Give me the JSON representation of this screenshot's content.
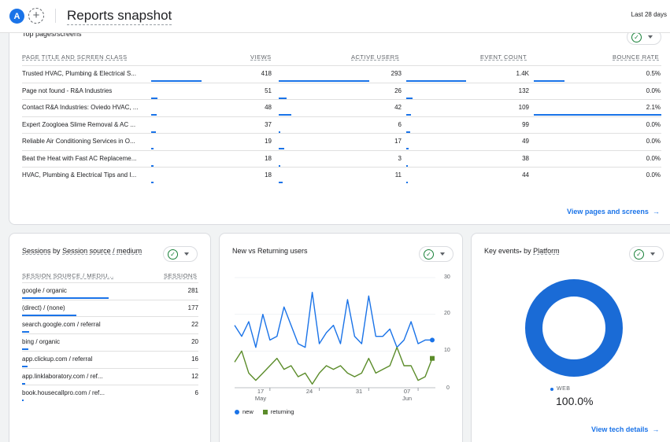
{
  "header": {
    "avatar_letter": "A",
    "add_label": "+",
    "title": "Reports snapshot",
    "date_range": "Last 28 days"
  },
  "top_pages": {
    "title": "Top pages/screens",
    "columns": [
      "PAGE TITLE AND SCREEN CLASS",
      "VIEWS",
      "ACTIVE USERS",
      "EVENT COUNT",
      "BOUNCE RATE"
    ],
    "rows": [
      {
        "page": "Trusted HVAC, Plumbing & Electrical S...",
        "views": "418",
        "users": "293",
        "events": "1.4K",
        "bounce": "0.5%",
        "f": [
          1.0,
          1.0,
          1.0,
          0.24
        ]
      },
      {
        "page": "Page not found - R&A Industries",
        "views": "51",
        "users": "26",
        "events": "132",
        "bounce": "0.0%",
        "f": [
          0.12,
          0.09,
          0.1,
          0
        ]
      },
      {
        "page": "Contact R&A Industries: Oviedo HVAC, ...",
        "views": "48",
        "users": "42",
        "events": "109",
        "bounce": "2.1%",
        "f": [
          0.11,
          0.14,
          0.08,
          1.0
        ]
      },
      {
        "page": "Expert Zoogloea Slime Removal & AC ...",
        "views": "37",
        "users": "6",
        "events": "99",
        "bounce": "0.0%",
        "f": [
          0.09,
          0.02,
          0.07,
          0
        ]
      },
      {
        "page": "Reliable Air Conditioning Services in O...",
        "views": "19",
        "users": "17",
        "events": "49",
        "bounce": "0.0%",
        "f": [
          0.05,
          0.06,
          0.04,
          0
        ]
      },
      {
        "page": "Beat the Heat with Fast AC Replaceme...",
        "views": "18",
        "users": "3",
        "events": "38",
        "bounce": "0.0%",
        "f": [
          0.04,
          0.01,
          0.03,
          0
        ]
      },
      {
        "page": "HVAC, Plumbing & Electrical Tips and I...",
        "views": "18",
        "users": "11",
        "events": "44",
        "bounce": "0.0%",
        "f": [
          0.04,
          0.04,
          0.03,
          0
        ]
      }
    ],
    "link": "View pages and screens"
  },
  "sessions": {
    "title_prefix": "Sessions",
    "title_by": "by",
    "title_dim": "Session source / medium",
    "col_source": "SESSION SOURCE / MEDIU...",
    "col_sessions": "SESSIONS",
    "rows": [
      {
        "source": "google / organic",
        "value": "281",
        "f": 1.0
      },
      {
        "source": "(direct) / (none)",
        "value": "177",
        "f": 0.63
      },
      {
        "source": "search.google.com / referral",
        "value": "22",
        "f": 0.08
      },
      {
        "source": "bing / organic",
        "value": "20",
        "f": 0.07
      },
      {
        "source": "app.clickup.com / referral",
        "value": "16",
        "f": 0.06
      },
      {
        "source": "app.linklaboratory.com / ref...",
        "value": "12",
        "f": 0.04
      },
      {
        "source": "book.housecallpro.com / ref...",
        "value": "6",
        "f": 0.02
      }
    ]
  },
  "nvr": {
    "title": "New vs Returning users",
    "yticks": [
      "30",
      "20",
      "10",
      "0"
    ],
    "xticks": [
      {
        "d": "17",
        "m": "May"
      },
      {
        "d": "24",
        "m": ""
      },
      {
        "d": "31",
        "m": ""
      },
      {
        "d": "07",
        "m": "Jun"
      }
    ],
    "legend_new": "new",
    "legend_returning": "returning"
  },
  "chart_data": {
    "type": "line",
    "title": "New vs Returning users",
    "ylim": [
      0,
      30
    ],
    "x": [
      "May 12",
      "May 13",
      "May 14",
      "May 15",
      "May 16",
      "May 17",
      "May 18",
      "May 19",
      "May 20",
      "May 21",
      "May 22",
      "May 23",
      "May 24",
      "May 25",
      "May 26",
      "May 27",
      "May 28",
      "May 29",
      "May 30",
      "May 31",
      "Jun 1",
      "Jun 2",
      "Jun 3",
      "Jun 4",
      "Jun 5",
      "Jun 6",
      "Jun 7",
      "Jun 8",
      "Jun 9"
    ],
    "series": [
      {
        "name": "new",
        "color": "#1a73e8",
        "values": [
          17,
          14,
          18,
          11,
          20,
          13,
          14,
          22,
          17,
          12,
          11,
          26,
          12,
          15,
          17,
          12,
          24,
          14,
          12,
          25,
          14,
          14,
          16,
          11,
          13,
          18,
          12,
          13,
          13
        ]
      },
      {
        "name": "returning",
        "color": "#5b8c2a",
        "values": [
          7,
          10,
          4,
          2,
          4,
          6,
          8,
          5,
          6,
          3,
          4,
          1,
          4,
          6,
          5,
          6,
          4,
          3,
          4,
          8,
          4,
          5,
          6,
          11,
          6,
          6,
          2,
          3,
          8
        ]
      }
    ]
  },
  "key_events": {
    "title": "Key events",
    "title_by": "by",
    "title_dim": "Platform",
    "legend_label": "WEB",
    "value": "100.0%",
    "link": "View tech details"
  }
}
